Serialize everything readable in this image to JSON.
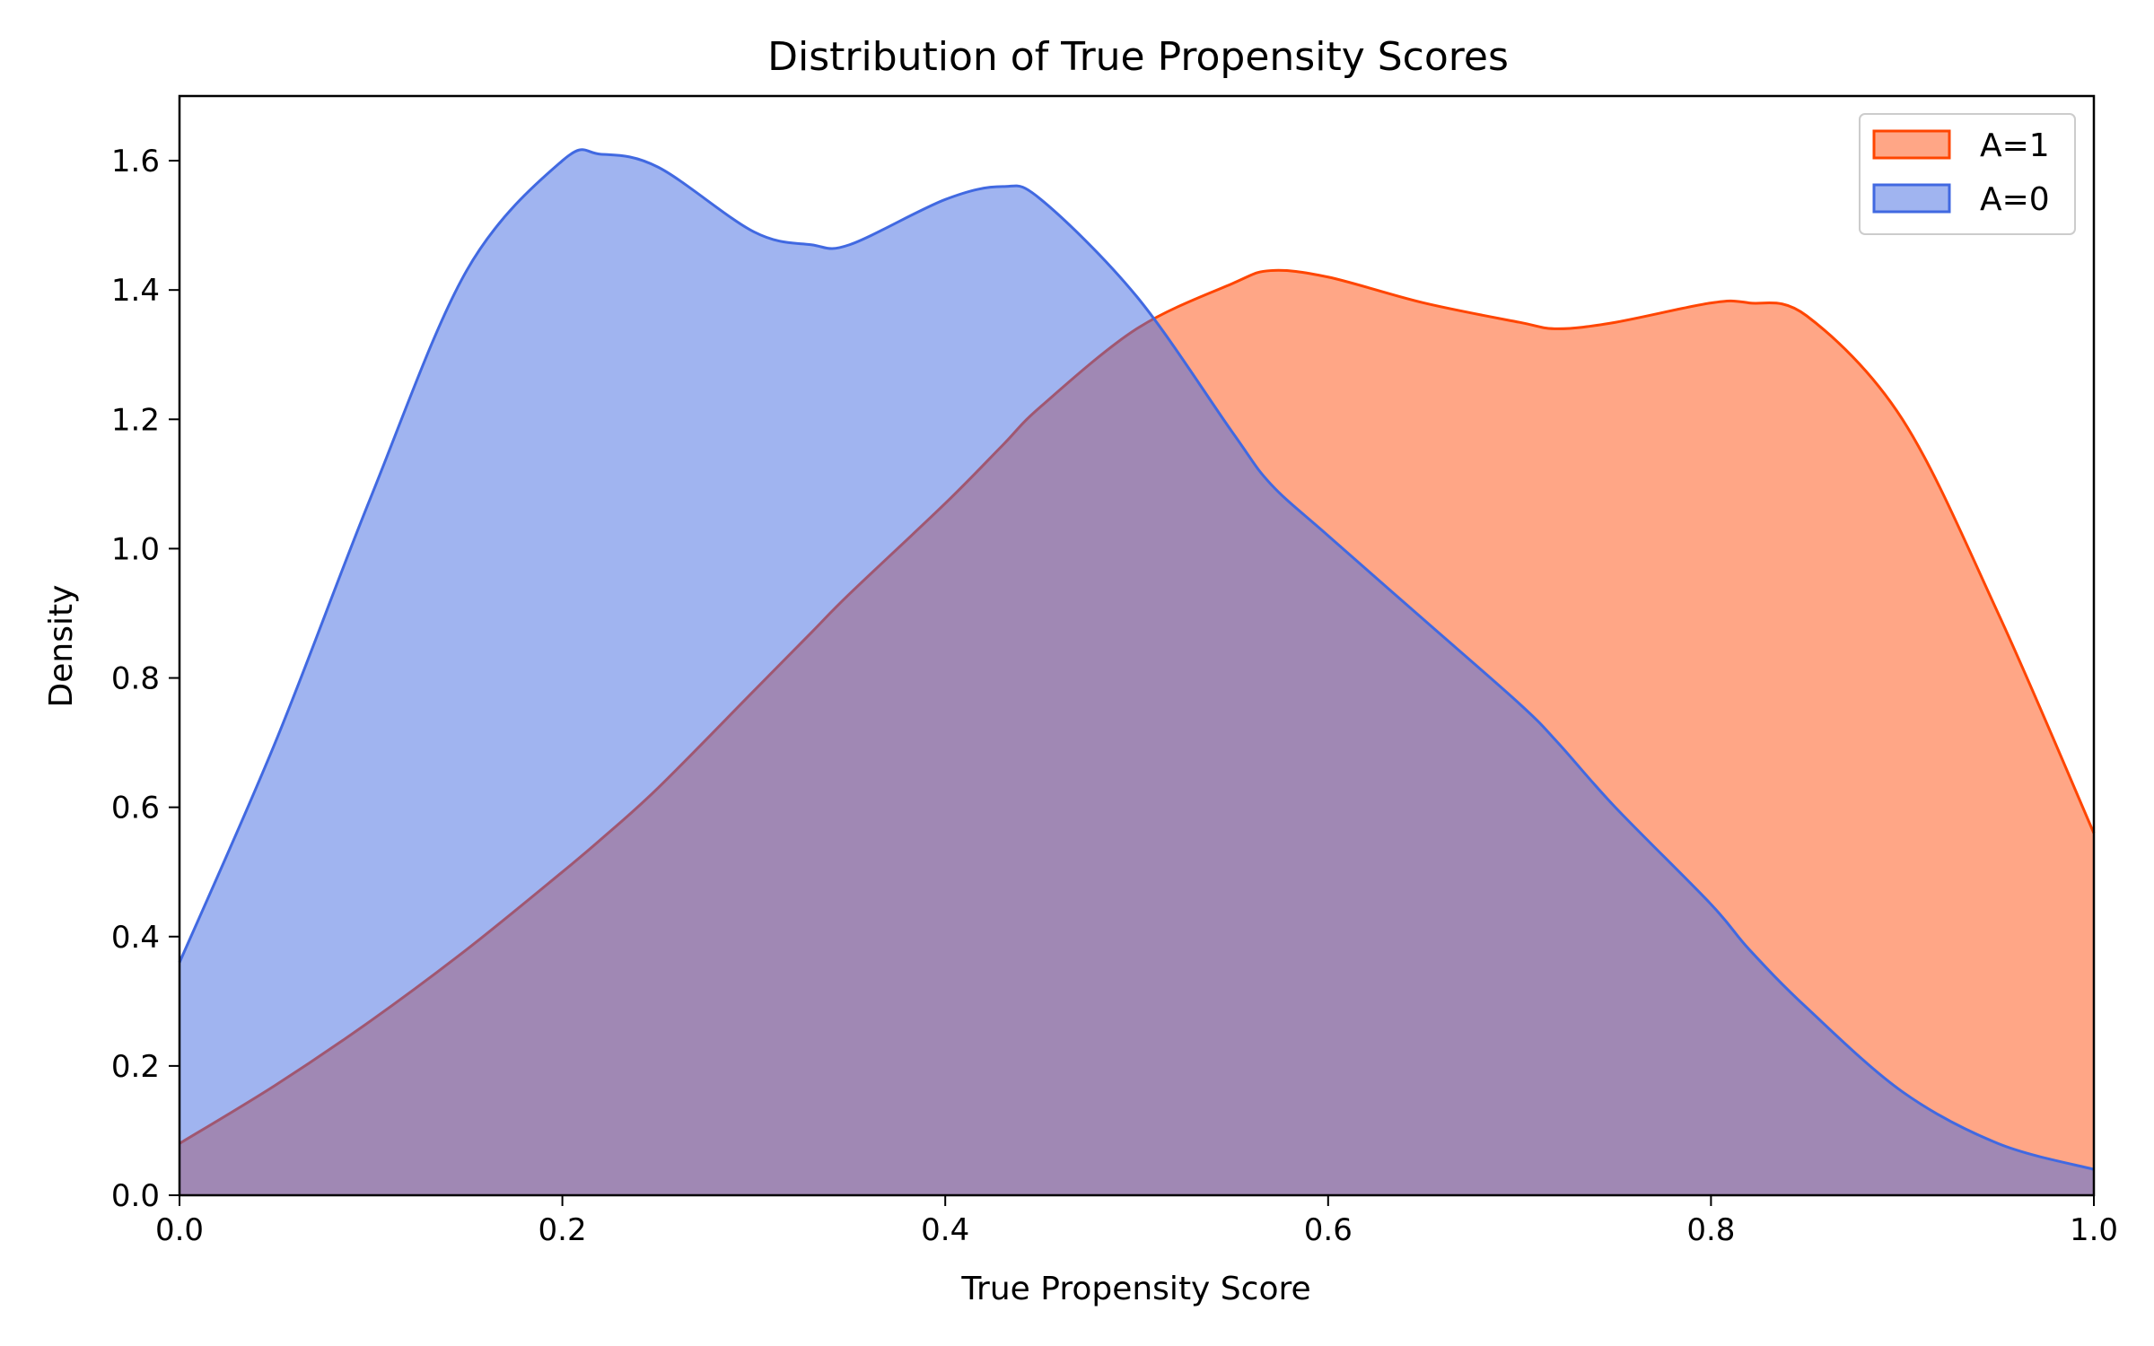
{
  "chart_data": {
    "type": "area",
    "title": "Distribution of True Propensity Scores",
    "xlabel": "True Propensity Score",
    "ylabel": "Density",
    "xlim": [
      0.0,
      1.0
    ],
    "ylim": [
      0.0,
      1.7
    ],
    "xticks": [
      "0.0",
      "0.2",
      "0.4",
      "0.6",
      "0.8",
      "1.0"
    ],
    "yticks": [
      "0.0",
      "0.2",
      "0.4",
      "0.6",
      "0.8",
      "1.0",
      "1.2",
      "1.4",
      "1.6"
    ],
    "xtick_values": [
      0.0,
      0.2,
      0.4,
      0.6,
      0.8,
      1.0
    ],
    "ytick_values": [
      0.0,
      0.2,
      0.4,
      0.6,
      0.8,
      1.0,
      1.2,
      1.4,
      1.6
    ],
    "grid": false,
    "legend_position": "top-right",
    "x": [
      0.0,
      0.05,
      0.1,
      0.15,
      0.2,
      0.22,
      0.25,
      0.3,
      0.33,
      0.35,
      0.4,
      0.43,
      0.45,
      0.5,
      0.55,
      0.57,
      0.6,
      0.65,
      0.7,
      0.72,
      0.75,
      0.8,
      0.82,
      0.85,
      0.9,
      0.95,
      1.0
    ],
    "series": [
      {
        "name": "A=1",
        "color_fill": "#ff6a35",
        "color_line": "#ff4500",
        "fill_opacity": 0.6,
        "values": [
          0.08,
          0.17,
          0.27,
          0.38,
          0.5,
          0.55,
          0.63,
          0.78,
          0.87,
          0.93,
          1.07,
          1.16,
          1.22,
          1.34,
          1.41,
          1.43,
          1.42,
          1.38,
          1.35,
          1.34,
          1.35,
          1.38,
          1.38,
          1.36,
          1.2,
          0.9,
          0.56
        ]
      },
      {
        "name": "A=0",
        "color_fill": "#4169e1",
        "color_line": "#4169e1",
        "fill_opacity": 0.5,
        "values": [
          0.36,
          0.7,
          1.08,
          1.43,
          1.6,
          1.61,
          1.59,
          1.49,
          1.47,
          1.47,
          1.54,
          1.56,
          1.54,
          1.39,
          1.18,
          1.1,
          1.02,
          0.89,
          0.76,
          0.7,
          0.6,
          0.45,
          0.38,
          0.29,
          0.16,
          0.08,
          0.04
        ]
      }
    ]
  }
}
